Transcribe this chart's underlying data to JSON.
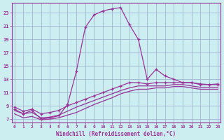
{
  "title": "",
  "xlabel": "Windchill (Refroidissement éolien,°C)",
  "ylabel": "",
  "bg_color": "#cceef0",
  "line_color": "#993399",
  "grid_color": "#99aacc",
  "x_ticks": [
    0,
    1,
    2,
    3,
    4,
    5,
    6,
    7,
    8,
    9,
    10,
    11,
    12,
    13,
    14,
    15,
    16,
    17,
    18,
    19,
    20,
    21,
    22,
    23
  ],
  "y_ticks": [
    7,
    9,
    11,
    13,
    15,
    17,
    19,
    21,
    23
  ],
  "ylim": [
    6.5,
    24.5
  ],
  "xlim": [
    -0.3,
    23.3
  ],
  "series1_x": [
    0,
    1,
    2,
    3,
    4,
    5,
    6,
    7,
    8,
    9,
    10,
    11,
    12,
    13,
    14,
    15,
    16,
    17,
    18,
    19,
    20,
    21,
    22,
    23
  ],
  "series1_y": [
    8.5,
    7.8,
    8.3,
    7.0,
    7.2,
    7.5,
    9.2,
    14.2,
    20.8,
    22.7,
    23.3,
    23.6,
    23.8,
    21.2,
    19.0,
    13.0,
    14.5,
    13.5,
    13.0,
    12.5,
    12.5,
    12.2,
    12.2,
    12.2
  ],
  "series2_x": [
    0,
    1,
    2,
    3,
    4,
    5,
    6,
    7,
    8,
    9,
    10,
    11,
    12,
    13,
    14,
    15,
    16,
    17,
    18,
    19,
    20,
    21,
    22,
    23
  ],
  "series2_y": [
    8.8,
    8.2,
    8.5,
    7.8,
    8.0,
    8.3,
    9.0,
    9.5,
    10.0,
    10.5,
    11.0,
    11.5,
    12.0,
    12.5,
    12.5,
    12.3,
    12.5,
    12.5,
    12.5,
    12.5,
    12.5,
    12.3,
    12.2,
    12.3
  ],
  "series3_x": [
    0,
    1,
    2,
    3,
    4,
    5,
    6,
    7,
    8,
    9,
    10,
    11,
    12,
    13,
    14,
    15,
    16,
    17,
    18,
    19,
    20,
    21,
    22,
    23
  ],
  "series3_y": [
    8.3,
    7.8,
    8.0,
    7.2,
    7.3,
    7.6,
    8.2,
    8.8,
    9.3,
    9.8,
    10.3,
    10.8,
    11.3,
    11.7,
    12.0,
    12.0,
    12.0,
    12.0,
    12.2,
    12.2,
    12.0,
    11.8,
    11.8,
    11.8
  ],
  "series4_x": [
    0,
    1,
    2,
    3,
    4,
    5,
    6,
    7,
    8,
    9,
    10,
    11,
    12,
    13,
    14,
    15,
    16,
    17,
    18,
    19,
    20,
    21,
    22,
    23
  ],
  "series4_y": [
    7.8,
    7.2,
    7.4,
    6.9,
    7.0,
    7.2,
    7.6,
    8.0,
    8.6,
    9.2,
    9.7,
    10.2,
    10.8,
    11.2,
    11.5,
    11.5,
    11.7,
    11.7,
    11.9,
    11.9,
    11.7,
    11.5,
    11.5,
    11.5
  ]
}
